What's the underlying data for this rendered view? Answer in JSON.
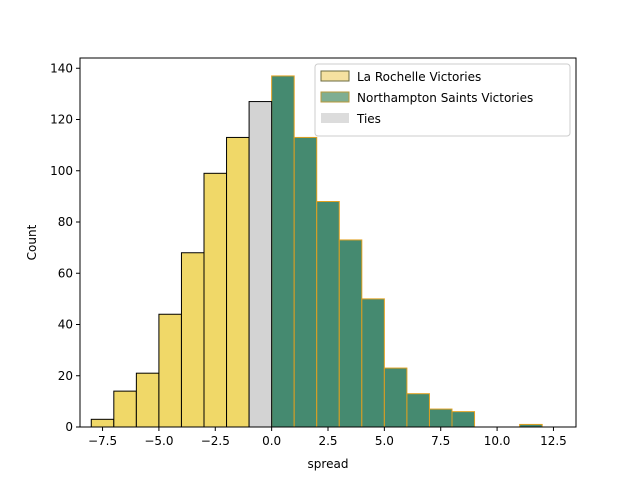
{
  "chart_data": {
    "type": "bar",
    "title": "",
    "xlabel": "spread",
    "ylabel": "Count",
    "xlim": [
      -8.5,
      13.5
    ],
    "ylim": [
      0,
      144
    ],
    "grid": false,
    "legend_placement": "top-right",
    "x_ticks": [
      -7.5,
      -5.0,
      -2.5,
      0.0,
      2.5,
      5.0,
      7.5,
      10.0,
      12.5
    ],
    "x_tick_labels": [
      "−7.5",
      "−5.0",
      "−2.5",
      "0.0",
      "2.5",
      "5.0",
      "7.5",
      "10.0",
      "12.5"
    ],
    "y_ticks": [
      0,
      20,
      40,
      60,
      80,
      100,
      120,
      140
    ],
    "y_tick_labels": [
      "0",
      "20",
      "40",
      "60",
      "80",
      "100",
      "120",
      "140"
    ],
    "bin_width": 1,
    "series": [
      {
        "name": "La Rochelle Victories",
        "fill": "#f0d868",
        "edge": "#000000",
        "bins": [
          {
            "x": -7.5,
            "count": 3
          },
          {
            "x": -6.5,
            "count": 14
          },
          {
            "x": -5.5,
            "count": 21
          },
          {
            "x": -4.5,
            "count": 44
          },
          {
            "x": -3.5,
            "count": 68
          },
          {
            "x": -2.5,
            "count": 99
          },
          {
            "x": -1.5,
            "count": 113
          }
        ]
      },
      {
        "name": "Northampton Saints Victories",
        "fill": "#458a70",
        "edge": "#e0a020",
        "bins": [
          {
            "x": 0.5,
            "count": 137
          },
          {
            "x": 1.5,
            "count": 113
          },
          {
            "x": 2.5,
            "count": 88
          },
          {
            "x": 3.5,
            "count": 73
          },
          {
            "x": 4.5,
            "count": 50
          },
          {
            "x": 5.5,
            "count": 23
          },
          {
            "x": 6.5,
            "count": 13
          },
          {
            "x": 7.5,
            "count": 7
          },
          {
            "x": 8.5,
            "count": 6
          },
          {
            "x": 9.5,
            "count": 0
          },
          {
            "x": 10.5,
            "count": 0
          },
          {
            "x": 11.5,
            "count": 1
          }
        ]
      },
      {
        "name": "Ties",
        "fill": "#d3d3d3",
        "edge": "#000000",
        "bins": [
          {
            "x": -0.5,
            "count": 127
          }
        ]
      }
    ],
    "legend": [
      {
        "label": "La Rochelle Victories",
        "fill": "#f5e1a0",
        "edge": "#6b6b40"
      },
      {
        "label": "Northampton Saints Victories",
        "fill": "#7fae92",
        "edge": "#b89a3a"
      },
      {
        "label": "Ties",
        "fill": "#dcdcdc",
        "edge": "none"
      }
    ]
  }
}
